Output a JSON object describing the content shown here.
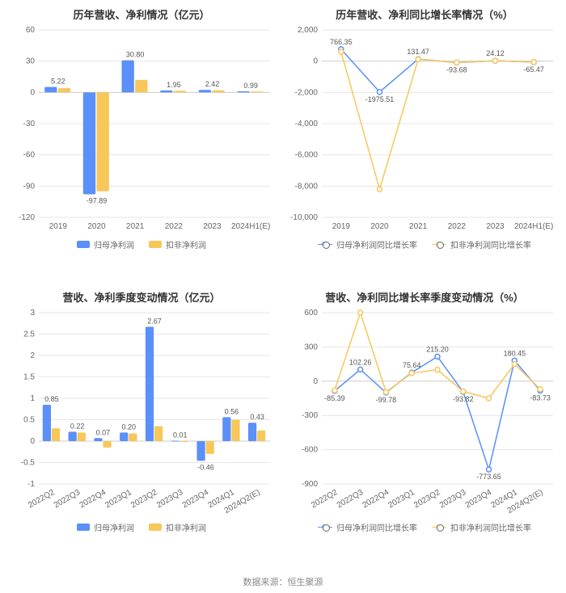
{
  "colors": {
    "blue": "#5b8ff9",
    "yellow": "#f7c75a",
    "grid": "#e6e6e6",
    "zero": "#cccccc",
    "text": "#666666",
    "title": "#333333",
    "bg": "#ffffff"
  },
  "source_label": "数据来源：恒生聚源",
  "panel1": {
    "title": "历年营收、净利情况（亿元）",
    "type": "grouped-bar",
    "categories": [
      "2019",
      "2020",
      "2021",
      "2022",
      "2023",
      "2024H1(E)"
    ],
    "series": [
      {
        "name": "归母净利润",
        "key": "s1",
        "color": "#5b8ff9",
        "values": [
          5.22,
          -97.89,
          30.8,
          1.95,
          2.42,
          0.99
        ]
      },
      {
        "name": "扣非净利润",
        "key": "s2",
        "color": "#f7c75a",
        "values": [
          4.0,
          -95.0,
          12.0,
          1.5,
          2.0,
          0.8
        ]
      }
    ],
    "value_labels": [
      "5.22",
      "-97.89",
      "30.80",
      "1.95",
      "2.42",
      "0.99"
    ],
    "ylim": [
      -120,
      60
    ],
    "ytick_step": 30,
    "bar_group_width": 0.7,
    "title_fontsize": 13,
    "tick_fontsize": 10,
    "label_fontsize": 9
  },
  "panel2": {
    "title": "历年营收、净利同比增长率情况（%）",
    "type": "line",
    "categories": [
      "2019",
      "2020",
      "2021",
      "2022",
      "2023",
      "2024H1(E)"
    ],
    "series": [
      {
        "name": "归母净利润同比增长率",
        "key": "s1",
        "color": "#5b8ff9",
        "values": [
          766.35,
          -1975.51,
          131.47,
          -93.68,
          24.12,
          -65.47
        ]
      },
      {
        "name": "扣非净利润同比增长率",
        "key": "s2",
        "color": "#f7c75a",
        "values": [
          600,
          -8200,
          120,
          -90,
          20,
          -60
        ]
      }
    ],
    "value_labels": [
      "766.35",
      "-1975.51",
      "131.47",
      "-93.68",
      "24.12",
      "-65.47"
    ],
    "ylim": [
      -10000,
      2000
    ],
    "ytick_step": 2000,
    "marker": "circle",
    "line_width": 1.5,
    "title_fontsize": 13,
    "tick_fontsize": 10,
    "label_fontsize": 9
  },
  "panel3": {
    "title": "营收、净利季度变动情况（亿元）",
    "type": "grouped-bar",
    "categories": [
      "2022Q2",
      "2022Q3",
      "2022Q4",
      "2023Q1",
      "2023Q2",
      "2023Q3",
      "2023Q4",
      "2024Q1",
      "2024Q2(E)"
    ],
    "series": [
      {
        "name": "归母净利润",
        "key": "s1",
        "color": "#5b8ff9",
        "values": [
          0.85,
          0.22,
          0.07,
          0.2,
          2.67,
          0.01,
          -0.46,
          0.56,
          0.43
        ]
      },
      {
        "name": "扣非净利润",
        "key": "s2",
        "color": "#f7c75a",
        "values": [
          0.3,
          0.2,
          -0.15,
          0.18,
          0.35,
          0.0,
          -0.3,
          0.5,
          0.25
        ]
      }
    ],
    "value_labels": [
      "0.85",
      "0.22",
      "0.07",
      "0.20",
      "2.67",
      "0.01",
      "-0.46",
      "0.56",
      "0.43"
    ],
    "ylim": [
      -1,
      3
    ],
    "ytick_step": 0.5,
    "bar_group_width": 0.7,
    "x_rotate": 30,
    "title_fontsize": 13,
    "tick_fontsize": 10,
    "label_fontsize": 9
  },
  "panel4": {
    "title": "营收、净利同比增长率季度变动情况（%）",
    "type": "line",
    "categories": [
      "2022Q2",
      "2022Q3",
      "2022Q4",
      "2023Q1",
      "2023Q2",
      "2023Q3",
      "2023Q4",
      "2024Q1",
      "2024Q2(E)"
    ],
    "series": [
      {
        "name": "归母净利润同比增长率",
        "key": "s1",
        "color": "#5b8ff9",
        "values": [
          -85.39,
          102.26,
          -99.78,
          75.64,
          215.2,
          -93.82,
          -773.65,
          180.45,
          -83.73
        ]
      },
      {
        "name": "扣非净利润同比增长率",
        "key": "s2",
        "color": "#f7c75a",
        "values": [
          -80,
          600,
          -95,
          70,
          100,
          -90,
          -150,
          150,
          -70
        ]
      }
    ],
    "value_labels": [
      "-85.39",
      "102.26",
      "-99.78",
      "75.64",
      "215.20",
      "-93.82",
      "-773.65",
      "180.45",
      "-83.73"
    ],
    "ylim": [
      -900,
      600
    ],
    "ytick_step": 300,
    "marker": "circle",
    "line_width": 1.5,
    "x_rotate": 30,
    "title_fontsize": 13,
    "tick_fontsize": 10,
    "label_fontsize": 9
  }
}
